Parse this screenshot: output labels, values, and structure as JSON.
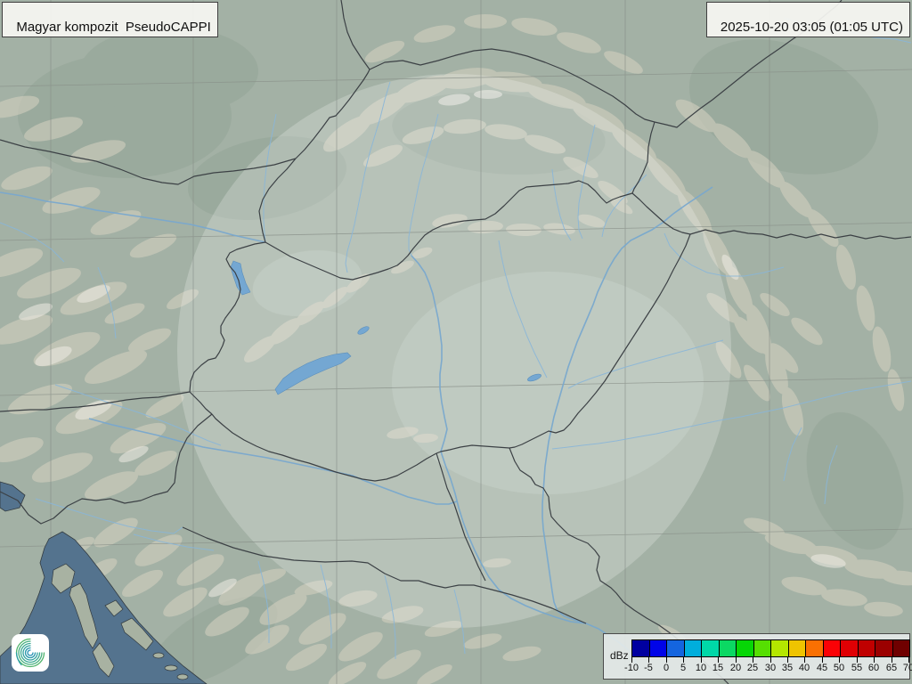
{
  "header": {
    "product_label": "Magyar kompozit  PseudoCAPPI",
    "timestamp": "2025-10-20 03:05 (01:05 UTC)"
  },
  "legend": {
    "unit_label": "dBz",
    "tick_values": [
      -10,
      -5,
      0,
      5,
      10,
      15,
      20,
      25,
      30,
      35,
      40,
      45,
      50,
      55,
      60,
      65,
      70
    ],
    "cell_colors": [
      "#0000a0",
      "#0004e8",
      "#1465df",
      "#00aedc",
      "#00d8a8",
      "#0bd863",
      "#06d606",
      "#56df02",
      "#b4e700",
      "#efc400",
      "#f97002",
      "#fb0206",
      "#e00004",
      "#c00000",
      "#9b0000",
      "#6f0000"
    ]
  },
  "map": {
    "colors": {
      "land_outer": "#a3b1a5",
      "land_inside_radar_circle": "#bcc9bf",
      "sea": "#54738e",
      "river": "#8ab6d8",
      "lake": "#74a7d2",
      "border": "#3c4145",
      "graticule": "#878e87",
      "terrain_highland": "#d8d2c2"
    }
  },
  "branding": {
    "logo_icon": "hungaromet-spiral-logo"
  }
}
